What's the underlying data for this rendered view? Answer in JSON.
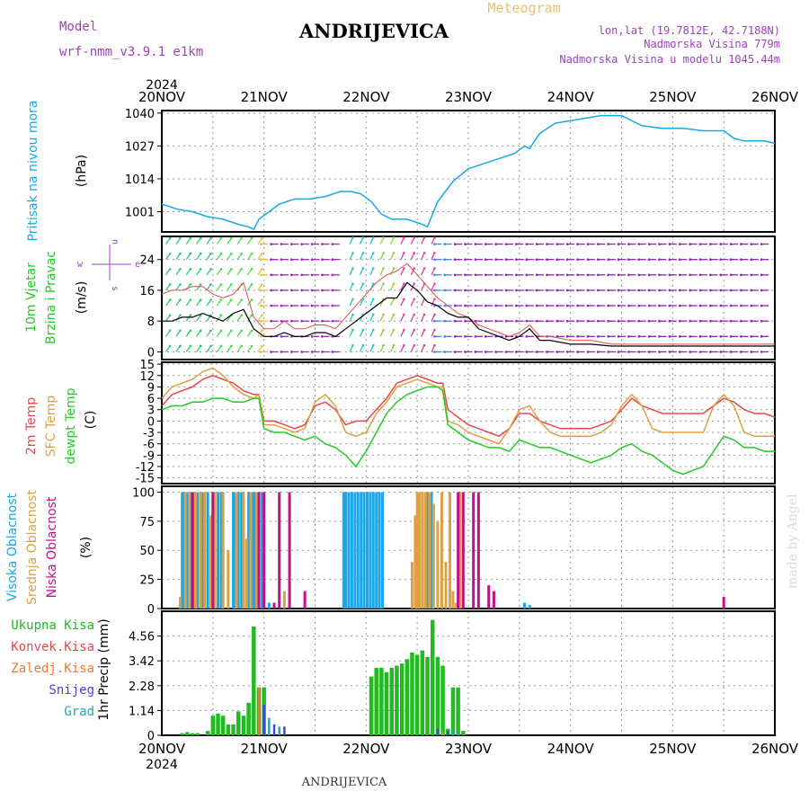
{
  "header": {
    "model_label": "Model",
    "model_name": "wrf-nmm_v3.9.1  e1km",
    "station": "ANDRIJEVICA",
    "product": "Meteogram",
    "lonlat": "lon,lat (19.7812E, 42.7188N)",
    "elevation": "Nadmorska Visina 779m",
    "model_elevation": "Nadmorska Visina u modelu 1045.44m",
    "credit": "made by Angel",
    "footer_station": "ANDRIJEVICA"
  },
  "x_axis": {
    "year_top": "2024",
    "year_bottom": "2024",
    "ticks": [
      "20NOV",
      "21NOV",
      "22NOV",
      "23NOV",
      "24NOV",
      "25NOV",
      "26NOV"
    ]
  },
  "colors": {
    "pressure": "#1aa7e8",
    "temp2m": "#e84848",
    "sfc_temp": "#e0a040",
    "dewpoint": "#22cc22",
    "high_cloud": "#1aa7e8",
    "mid_cloud": "#e0a040",
    "low_cloud": "#c0108a",
    "total_precip": "#22bb22",
    "conv_precip": "#e84848",
    "frozen_precip": "#f07830",
    "snow": "#4444dd",
    "hail": "#22aaaa",
    "wind_speed": "#000000",
    "wind_gust": "#e84848"
  },
  "chart_data": [
    {
      "type": "line",
      "panel": "pressure",
      "ylabel": [
        "Pritisak na nivou mora",
        "(hPa)"
      ],
      "yticks": [
        1001,
        1014,
        1027,
        1040
      ],
      "ylim": [
        993,
        1041
      ],
      "x_days": [
        0,
        0.15,
        0.3,
        0.45,
        0.6,
        0.75,
        0.85,
        0.9,
        0.95,
        1.05,
        1.15,
        1.3,
        1.45,
        1.6,
        1.75,
        1.85,
        1.95,
        2.05,
        2.15,
        2.25,
        2.4,
        2.55,
        2.6,
        2.7,
        2.85,
        3.0,
        3.15,
        3.3,
        3.45,
        3.55,
        3.6,
        3.7,
        3.85,
        4.0,
        4.15,
        4.3,
        4.5,
        4.7,
        4.9,
        5.1,
        5.3,
        5.5,
        5.6,
        5.7,
        5.9,
        6.0
      ],
      "series": [
        {
          "values": [
            1004,
            1002,
            1001,
            999,
            998,
            996,
            995,
            994,
            998,
            1001,
            1004,
            1006,
            1006,
            1007,
            1009,
            1009,
            1008,
            1005,
            1000,
            998,
            998,
            996,
            995,
            1005,
            1013,
            1018,
            1020,
            1022,
            1024,
            1027,
            1026,
            1032,
            1036,
            1037,
            1038,
            1039,
            1039,
            1035,
            1034,
            1034,
            1033,
            1033,
            1030,
            1029,
            1029,
            1028
          ]
        }
      ]
    },
    {
      "type": "line",
      "panel": "wind",
      "ylabel": [
        "10m Vjetar",
        "Brzina i Pravac",
        "(m/s)"
      ],
      "yticks": [
        0,
        8,
        16,
        24
      ],
      "ylim": [
        -2,
        30
      ],
      "x_days": [
        0,
        0.1,
        0.2,
        0.3,
        0.4,
        0.5,
        0.6,
        0.7,
        0.8,
        0.9,
        1.0,
        1.1,
        1.2,
        1.3,
        1.4,
        1.5,
        1.6,
        1.7,
        1.8,
        1.9,
        2.0,
        2.1,
        2.2,
        2.3,
        2.4,
        2.5,
        2.6,
        2.7,
        2.8,
        2.9,
        3.0,
        3.1,
        3.2,
        3.3,
        3.4,
        3.5,
        3.6,
        3.7,
        3.8,
        4.0,
        4.2,
        4.4,
        4.6,
        4.8,
        5.0,
        5.2,
        5.4,
        5.6,
        5.8,
        6.0
      ],
      "series": [
        {
          "name": "speed",
          "values": [
            8,
            8,
            9,
            9,
            10,
            9,
            8,
            10,
            11,
            6,
            4,
            4,
            5,
            4,
            4,
            5,
            5,
            4,
            6,
            8,
            10,
            12,
            14,
            14,
            18,
            16,
            13,
            12,
            10,
            9,
            9,
            6,
            5,
            4,
            3,
            4,
            6,
            3,
            3,
            2,
            2,
            1.5,
            1.5,
            1.5,
            1.5,
            1.5,
            1.5,
            1.5,
            1.5,
            1.5
          ]
        },
        {
          "name": "gust",
          "values": [
            15,
            16,
            16,
            17,
            17,
            15,
            14,
            15,
            18,
            9,
            6,
            6,
            8,
            6,
            6,
            7,
            7,
            6,
            9,
            12,
            15,
            18,
            20,
            21,
            23,
            20,
            17,
            14,
            12,
            10,
            9,
            7,
            6,
            5,
            4,
            5,
            7,
            4,
            4,
            3,
            3,
            2,
            2,
            2,
            2,
            2,
            2,
            2,
            2,
            2
          ]
        }
      ],
      "legend_compass": [
        "w",
        "e",
        "n",
        "s"
      ]
    },
    {
      "type": "line",
      "panel": "temperature",
      "ylabel": [
        "2m Temp",
        "SFC Temp",
        "dewpt Temp",
        "(C)"
      ],
      "yticks": [
        -15,
        -12,
        -9,
        -6,
        -3,
        0,
        3,
        6,
        9,
        12,
        15
      ],
      "ylim": [
        -16.5,
        15.5
      ],
      "x_days": [
        0,
        0.1,
        0.2,
        0.3,
        0.4,
        0.5,
        0.6,
        0.7,
        0.8,
        0.9,
        0.95,
        1.0,
        1.1,
        1.2,
        1.3,
        1.4,
        1.5,
        1.6,
        1.7,
        1.8,
        1.9,
        2.0,
        2.1,
        2.2,
        2.3,
        2.4,
        2.5,
        2.6,
        2.7,
        2.75,
        2.8,
        2.9,
        3.0,
        3.1,
        3.2,
        3.3,
        3.4,
        3.5,
        3.6,
        3.7,
        3.8,
        3.9,
        4.0,
        4.1,
        4.2,
        4.3,
        4.4,
        4.5,
        4.6,
        4.7,
        4.8,
        4.9,
        5.0,
        5.1,
        5.2,
        5.3,
        5.4,
        5.5,
        5.6,
        5.7,
        5.8,
        5.9,
        6.0
      ],
      "series": [
        {
          "name": "2m Temp",
          "values": [
            4,
            7,
            8,
            9,
            11,
            12,
            11,
            10,
            8,
            7,
            7,
            0,
            0,
            -1,
            -2,
            -1,
            4,
            5,
            3,
            -1,
            0,
            0,
            3,
            6,
            10,
            11,
            12,
            11,
            10,
            10,
            3,
            1,
            -1,
            -2,
            -3,
            -4,
            -2,
            2,
            2,
            0,
            -1,
            -2,
            -2,
            -2,
            -2,
            -1,
            0,
            3,
            6,
            4,
            3,
            2,
            2,
            2,
            2,
            2,
            4,
            6,
            5,
            3,
            2,
            2,
            1
          ]
        },
        {
          "name": "SFC Temp",
          "values": [
            6,
            9,
            10,
            11,
            13,
            14,
            12,
            9,
            7,
            6,
            7,
            -1,
            -1,
            -2,
            -3,
            -2,
            5,
            7,
            4,
            -3,
            -4,
            -3,
            2,
            5,
            9,
            10,
            11,
            10,
            9,
            9,
            0,
            -1,
            -3,
            -4,
            -5,
            -6,
            -2,
            3,
            4,
            0,
            -3,
            -4,
            -4,
            -4,
            -4,
            -3,
            -1,
            4,
            7,
            4,
            -2,
            -3,
            -3,
            -3,
            -3,
            -3,
            4,
            7,
            4,
            -3,
            -4,
            -4,
            -4
          ]
        },
        {
          "name": "dewpt Temp",
          "values": [
            3,
            4,
            4,
            5,
            5,
            6,
            6,
            5,
            5,
            6,
            6,
            -2,
            -3,
            -3,
            -4,
            -5,
            -4,
            -6,
            -7,
            -9,
            -12,
            -8,
            -3,
            2,
            5,
            7,
            8,
            9,
            9,
            8,
            -1,
            -3,
            -5,
            -6,
            -7,
            -7,
            -8,
            -5,
            -6,
            -7,
            -7,
            -8,
            -9,
            -10,
            -11,
            -10,
            -9,
            -7,
            -6,
            -8,
            -9,
            -11,
            -13,
            -14,
            -13,
            -12,
            -8,
            -4,
            -5,
            -7,
            -7,
            -8,
            -8
          ]
        }
      ]
    },
    {
      "type": "bar",
      "panel": "cloud",
      "ylabel": [
        "Visoka Oblacnost",
        "Srednja Oblacnost",
        "Niska Oblacnost",
        "(%)"
      ],
      "yticks": [
        0,
        25,
        50,
        75,
        100
      ],
      "ylim": [
        0,
        105
      ],
      "series": [
        {
          "name": "Visoka Oblacnost",
          "x_days": [
            0.2,
            0.22,
            0.25,
            0.28,
            0.31,
            0.35,
            0.4,
            0.45,
            0.5,
            0.55,
            0.58,
            0.7,
            0.72,
            0.75,
            0.78,
            0.85,
            0.88,
            0.9,
            0.92,
            0.95,
            0.98,
            1.0,
            1.05,
            1.78,
            1.8,
            1.83,
            1.86,
            1.89,
            1.92,
            1.95,
            1.98,
            2.01,
            2.04,
            2.07,
            2.1,
            2.13,
            2.16,
            2.6,
            2.64,
            3.55,
            3.6
          ],
          "values": [
            100,
            100,
            100,
            100,
            100,
            100,
            100,
            100,
            100,
            100,
            100,
            100,
            100,
            100,
            100,
            100,
            100,
            100,
            100,
            100,
            100,
            100,
            5,
            100,
            100,
            100,
            100,
            100,
            100,
            100,
            100,
            100,
            100,
            100,
            100,
            100,
            100,
            100,
            100,
            5,
            3
          ]
        },
        {
          "name": "Srednja Oblacnost",
          "x_days": [
            0.18,
            0.23,
            0.27,
            0.33,
            0.38,
            0.42,
            0.48,
            0.52,
            0.6,
            0.65,
            0.73,
            0.8,
            0.83,
            0.87,
            0.93,
            1.0,
            1.2,
            2.45,
            2.48,
            2.5,
            2.52,
            2.55,
            2.58,
            2.62,
            2.66,
            2.7,
            2.74,
            2.78,
            2.82,
            2.85,
            2.88,
            2.92
          ],
          "values": [
            10,
            100,
            100,
            100,
            100,
            100,
            80,
            100,
            100,
            50,
            100,
            100,
            60,
            100,
            100,
            100,
            15,
            40,
            80,
            100,
            100,
            100,
            100,
            100,
            90,
            75,
            100,
            40,
            100,
            15,
            5,
            100
          ]
        },
        {
          "name": "Niska Oblacnost",
          "x_days": [
            0.3,
            0.5,
            0.95,
            1.0,
            1.1,
            1.15,
            1.25,
            1.4,
            2.9,
            2.95,
            3.05,
            3.1,
            3.2,
            3.25,
            5.5
          ],
          "values": [
            100,
            100,
            100,
            100,
            5,
            100,
            100,
            15,
            100,
            100,
            100,
            100,
            20,
            15,
            10
          ]
        }
      ]
    },
    {
      "type": "bar",
      "panel": "precipitation",
      "ylabel": [
        "1hr Precip (mm)"
      ],
      "legend": [
        "Ukupna Kisa",
        "Konvek.Kisa",
        "Zaledj.Kisa",
        "Snijeg",
        "Grad"
      ],
      "yticks": [
        0,
        1.14,
        2.28,
        3.42,
        4.56
      ],
      "ylim": [
        0,
        5.7
      ],
      "series": [
        {
          "name": "Ukupna Kisa",
          "x_days": [
            0.2,
            0.25,
            0.3,
            0.35,
            0.45,
            0.5,
            0.55,
            0.6,
            0.65,
            0.7,
            0.75,
            0.8,
            0.85,
            0.9,
            0.95,
            1.0,
            2.05,
            2.1,
            2.15,
            2.2,
            2.25,
            2.3,
            2.35,
            2.4,
            2.45,
            2.5,
            2.55,
            2.6,
            2.65,
            2.7,
            2.75,
            2.8,
            2.85,
            2.9,
            2.95
          ],
          "values": [
            0.1,
            0.15,
            0.1,
            0.1,
            0.2,
            0.9,
            1.0,
            0.9,
            0.5,
            0.5,
            1.1,
            0.9,
            1.5,
            5.0,
            2.2,
            2.2,
            2.7,
            3.1,
            3.1,
            2.9,
            3.1,
            3.2,
            3.3,
            3.5,
            3.8,
            3.7,
            3.9,
            3.6,
            5.3,
            3.6,
            3.2,
            0.3,
            2.2,
            2.2,
            0.2
          ]
        },
        {
          "name": "Snijeg",
          "x_days": [
            1.0,
            1.1,
            1.2,
            2.7,
            2.8
          ],
          "values": [
            1.4,
            0.5,
            0.4,
            0.3,
            0.2
          ]
        },
        {
          "name": "Zaledj.Kisa",
          "x_days": [
            0.95,
            2.75
          ],
          "values": [
            2.2,
            0.15
          ]
        },
        {
          "name": "Grad",
          "x_days": [
            1.05,
            1.15,
            2.85,
            2.9
          ],
          "values": [
            0.8,
            0.4,
            0.25,
            0.1
          ]
        }
      ]
    }
  ]
}
